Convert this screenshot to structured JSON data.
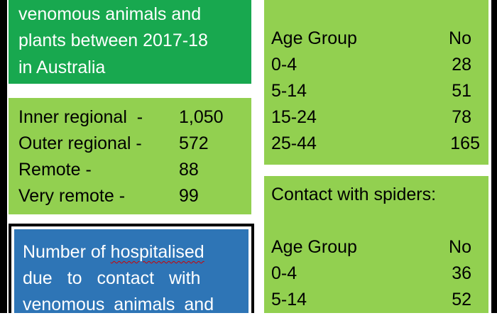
{
  "left_top": {
    "lines": [
      "venomous animals and",
      "plants between 2017-18",
      "in Australia"
    ]
  },
  "remoteness": {
    "rows": [
      {
        "label": "Inner regional  -",
        "value": "1,050"
      },
      {
        "label": "Outer regional -",
        "value": "572"
      },
      {
        "label": "Remote -",
        "value": "88"
      },
      {
        "label": "Very remote -",
        "value": "99"
      }
    ]
  },
  "hospitalised": {
    "line1_pre": "Number of ",
    "line1_word": "hospitalised",
    "line2": "due to contact with",
    "line3": "venomous animals and"
  },
  "age_table_1": {
    "header": {
      "col1": "Age Group",
      "col2": "No"
    },
    "rows": [
      {
        "age": "0-4",
        "no": "28"
      },
      {
        "age": "5-14",
        "no": "51"
      },
      {
        "age": "15-24",
        "no": "78"
      },
      {
        "age": "25-44",
        "no": "165"
      }
    ]
  },
  "spiders": {
    "title": "Contact with spiders:",
    "header": {
      "col1": "Age Group",
      "col2": "No"
    },
    "rows": [
      {
        "age": "0-4",
        "no": "36"
      },
      {
        "age": "5-14",
        "no": "52"
      }
    ]
  },
  "colors": {
    "dark_green": "#18a84f",
    "light_green": "#92d050",
    "blue": "#2e75b6"
  }
}
